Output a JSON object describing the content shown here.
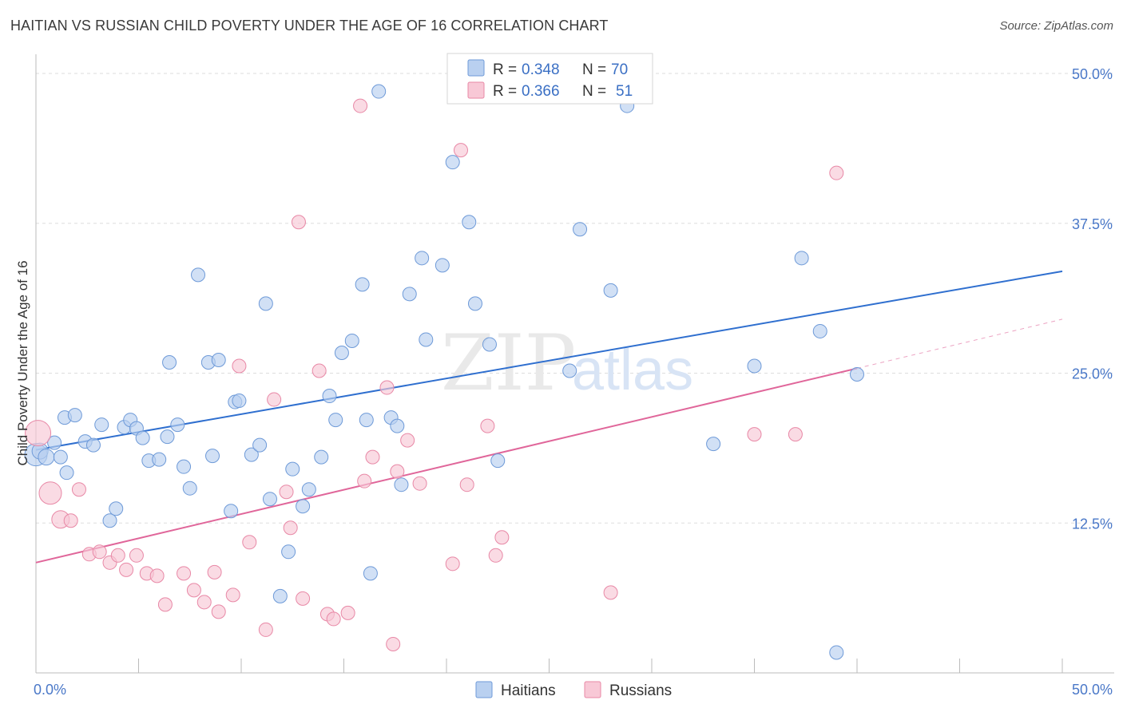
{
  "title": "HAITIAN VS RUSSIAN CHILD POVERTY UNDER THE AGE OF 16 CORRELATION CHART",
  "source": "Source: ZipAtlas.com",
  "watermark": {
    "zip": "ZIP",
    "atlas": "atlas"
  },
  "colors": {
    "haitian_fill": "#b9d0f0",
    "haitian_stroke": "#6e9ad8",
    "haitian_line": "#2f6fcf",
    "russian_fill": "#f8c8d6",
    "russian_stroke": "#e888a6",
    "russian_line": "#e0669a",
    "tick_label": "#4a78c8",
    "grid": "#dddddd"
  },
  "legend": {
    "rows": [
      {
        "series": "Haitians",
        "r_label": "R =",
        "r_value": "0.348",
        "n_label": "N =",
        "n_value": "70"
      },
      {
        "series": "Russians",
        "r_label": "R =",
        "r_value": "0.366",
        "n_label": "N =",
        "n_value": "51"
      }
    ]
  },
  "chart_data": {
    "type": "scatter",
    "title": "HAITIAN VS RUSSIAN CHILD POVERTY UNDER THE AGE OF 16 CORRELATION CHART",
    "xlabel": "",
    "ylabel": "Child Poverty Under the Age of 16",
    "xlim": [
      0,
      50
    ],
    "ylim": [
      0,
      51
    ],
    "x_tick_labels": [
      "0.0%",
      "50.0%"
    ],
    "y_ticks": [
      12.5,
      25.0,
      37.5,
      50.0
    ],
    "y_tick_labels": [
      "12.5%",
      "25.0%",
      "37.5%",
      "50.0%"
    ],
    "bottom_legend": [
      "Haitians",
      "Russians"
    ],
    "series": [
      {
        "name": "Haitians",
        "r": 0.348,
        "n": 70,
        "trend": {
          "x": [
            0,
            50
          ],
          "y": [
            18.6,
            33.5
          ]
        },
        "points": [
          {
            "x": 0.0,
            "y": 18.2,
            "s": 14
          },
          {
            "x": 0.2,
            "y": 18.5,
            "s": 10
          },
          {
            "x": 0.5,
            "y": 18.0,
            "s": 10
          },
          {
            "x": 0.9,
            "y": 19.2
          },
          {
            "x": 1.2,
            "y": 18.0
          },
          {
            "x": 1.5,
            "y": 16.7
          },
          {
            "x": 1.4,
            "y": 21.3
          },
          {
            "x": 1.9,
            "y": 21.5
          },
          {
            "x": 2.4,
            "y": 19.3
          },
          {
            "x": 2.8,
            "y": 19.0
          },
          {
            "x": 3.2,
            "y": 20.7
          },
          {
            "x": 3.6,
            "y": 12.7
          },
          {
            "x": 3.9,
            "y": 13.7
          },
          {
            "x": 4.3,
            "y": 20.5
          },
          {
            "x": 4.6,
            "y": 21.1
          },
          {
            "x": 4.9,
            "y": 20.4
          },
          {
            "x": 5.2,
            "y": 19.6
          },
          {
            "x": 5.5,
            "y": 17.7
          },
          {
            "x": 6.0,
            "y": 17.8
          },
          {
            "x": 6.5,
            "y": 25.9
          },
          {
            "x": 6.4,
            "y": 19.7
          },
          {
            "x": 6.9,
            "y": 20.7
          },
          {
            "x": 7.2,
            "y": 17.2
          },
          {
            "x": 7.5,
            "y": 15.4
          },
          {
            "x": 7.9,
            "y": 33.2
          },
          {
            "x": 8.4,
            "y": 25.9
          },
          {
            "x": 8.6,
            "y": 18.1
          },
          {
            "x": 8.9,
            "y": 26.1
          },
          {
            "x": 9.5,
            "y": 13.5
          },
          {
            "x": 9.7,
            "y": 22.6
          },
          {
            "x": 9.9,
            "y": 22.7
          },
          {
            "x": 10.5,
            "y": 18.2
          },
          {
            "x": 10.9,
            "y": 19.0
          },
          {
            "x": 11.2,
            "y": 30.8
          },
          {
            "x": 11.4,
            "y": 14.5
          },
          {
            "x": 11.9,
            "y": 6.4
          },
          {
            "x": 12.3,
            "y": 10.1
          },
          {
            "x": 12.5,
            "y": 17.0
          },
          {
            "x": 13.0,
            "y": 13.9
          },
          {
            "x": 13.3,
            "y": 15.3
          },
          {
            "x": 13.9,
            "y": 18.0
          },
          {
            "x": 14.3,
            "y": 23.1
          },
          {
            "x": 14.6,
            "y": 21.1
          },
          {
            "x": 14.9,
            "y": 26.7
          },
          {
            "x": 15.4,
            "y": 27.7
          },
          {
            "x": 15.9,
            "y": 32.4
          },
          {
            "x": 16.1,
            "y": 21.1
          },
          {
            "x": 16.3,
            "y": 8.3
          },
          {
            "x": 16.7,
            "y": 48.5
          },
          {
            "x": 17.3,
            "y": 21.3
          },
          {
            "x": 17.6,
            "y": 20.6
          },
          {
            "x": 17.8,
            "y": 15.7
          },
          {
            "x": 18.2,
            "y": 31.6
          },
          {
            "x": 18.8,
            "y": 34.6
          },
          {
            "x": 19.0,
            "y": 27.8
          },
          {
            "x": 19.8,
            "y": 34.0
          },
          {
            "x": 20.3,
            "y": 42.6
          },
          {
            "x": 21.1,
            "y": 37.6
          },
          {
            "x": 21.4,
            "y": 30.8
          },
          {
            "x": 22.1,
            "y": 27.4
          },
          {
            "x": 22.5,
            "y": 17.7
          },
          {
            "x": 26.0,
            "y": 25.2
          },
          {
            "x": 26.5,
            "y": 37.0
          },
          {
            "x": 28.8,
            "y": 47.3
          },
          {
            "x": 28.0,
            "y": 31.9
          },
          {
            "x": 33.0,
            "y": 19.1
          },
          {
            "x": 35.0,
            "y": 25.6
          },
          {
            "x": 37.3,
            "y": 34.6
          },
          {
            "x": 38.2,
            "y": 28.5
          },
          {
            "x": 39.0,
            "y": 1.7
          },
          {
            "x": 40.0,
            "y": 24.9
          }
        ]
      },
      {
        "name": "Russians",
        "r": 0.366,
        "n": 51,
        "trend": {
          "x": [
            0,
            40
          ],
          "y": [
            9.2,
            25.4
          ]
        },
        "trend_dashed_extension": {
          "x": [
            40,
            50
          ],
          "y": [
            25.4,
            29.5
          ]
        },
        "points": [
          {
            "x": 0.1,
            "y": 20.0,
            "s": 16
          },
          {
            "x": 0.7,
            "y": 15.0,
            "s": 14
          },
          {
            "x": 1.2,
            "y": 12.8,
            "s": 11
          },
          {
            "x": 1.7,
            "y": 12.7
          },
          {
            "x": 2.1,
            "y": 15.3
          },
          {
            "x": 2.6,
            "y": 9.9
          },
          {
            "x": 3.1,
            "y": 10.1
          },
          {
            "x": 3.6,
            "y": 9.2
          },
          {
            "x": 4.0,
            "y": 9.8
          },
          {
            "x": 4.4,
            "y": 8.6
          },
          {
            "x": 4.9,
            "y": 9.8
          },
          {
            "x": 5.4,
            "y": 8.3
          },
          {
            "x": 5.9,
            "y": 8.1
          },
          {
            "x": 6.3,
            "y": 5.7
          },
          {
            "x": 7.2,
            "y": 8.3
          },
          {
            "x": 7.7,
            "y": 6.9
          },
          {
            "x": 8.2,
            "y": 5.9
          },
          {
            "x": 8.7,
            "y": 8.4
          },
          {
            "x": 8.9,
            "y": 5.1
          },
          {
            "x": 9.6,
            "y": 6.5
          },
          {
            "x": 9.9,
            "y": 25.6
          },
          {
            "x": 10.4,
            "y": 10.9
          },
          {
            "x": 11.2,
            "y": 3.6
          },
          {
            "x": 11.6,
            "y": 22.8
          },
          {
            "x": 12.2,
            "y": 15.1
          },
          {
            "x": 12.4,
            "y": 12.1
          },
          {
            "x": 12.8,
            "y": 37.6
          },
          {
            "x": 13.0,
            "y": 6.2
          },
          {
            "x": 13.8,
            "y": 25.2
          },
          {
            "x": 14.2,
            "y": 4.9
          },
          {
            "x": 14.5,
            "y": 4.5
          },
          {
            "x": 15.2,
            "y": 5.0
          },
          {
            "x": 15.8,
            "y": 47.3
          },
          {
            "x": 16.0,
            "y": 16.0
          },
          {
            "x": 16.4,
            "y": 18.0
          },
          {
            "x": 17.1,
            "y": 23.8
          },
          {
            "x": 17.4,
            "y": 2.4
          },
          {
            "x": 17.6,
            "y": 16.8
          },
          {
            "x": 18.1,
            "y": 19.4
          },
          {
            "x": 18.7,
            "y": 15.8
          },
          {
            "x": 20.3,
            "y": 9.1
          },
          {
            "x": 20.7,
            "y": 43.6
          },
          {
            "x": 21.0,
            "y": 15.7
          },
          {
            "x": 22.0,
            "y": 20.6
          },
          {
            "x": 22.4,
            "y": 9.8
          },
          {
            "x": 22.7,
            "y": 11.3
          },
          {
            "x": 28.0,
            "y": 6.7
          },
          {
            "x": 35.0,
            "y": 19.9
          },
          {
            "x": 37.0,
            "y": 19.9
          },
          {
            "x": 39.0,
            "y": 41.7
          }
        ]
      }
    ]
  }
}
